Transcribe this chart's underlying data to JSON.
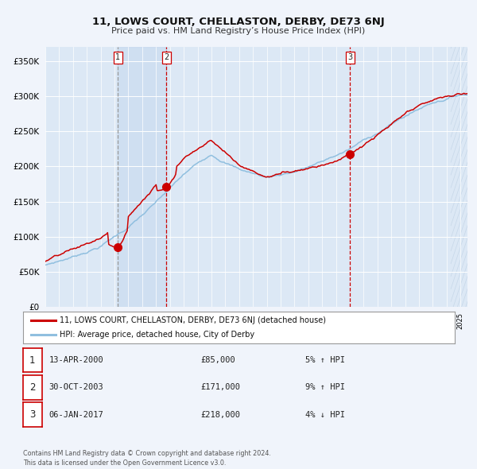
{
  "title": "11, LOWS COURT, CHELLASTON, DERBY, DE73 6NJ",
  "subtitle": "Price paid vs. HM Land Registry’s House Price Index (HPI)",
  "bg_color": "#f0f4fb",
  "plot_bg": "#dce8f5",
  "line_red_color": "#cc0000",
  "line_blue_color": "#90bfdf",
  "sale1_t": 2000.25,
  "sale1_price": 85000,
  "sale2_t": 2003.75,
  "sale2_price": 171000,
  "sale3_t": 2017.0,
  "sale3_price": 218000,
  "legend_red": "11, LOWS COURT, CHELLASTON, DERBY, DE73 6NJ (detached house)",
  "legend_blue": "HPI: Average price, detached house, City of Derby",
  "table_rows": [
    {
      "num": "1",
      "date": "13-APR-2000",
      "price": "£85,000",
      "change": "5% ↑ HPI"
    },
    {
      "num": "2",
      "date": "30-OCT-2003",
      "price": "£171,000",
      "change": "9% ↑ HPI"
    },
    {
      "num": "3",
      "date": "06-JAN-2017",
      "price": "£218,000",
      "change": "4% ↓ HPI"
    }
  ],
  "footer": "Contains HM Land Registry data © Crown copyright and database right 2024.\nThis data is licensed under the Open Government Licence v3.0.",
  "ylim": [
    0,
    370000
  ],
  "yticks": [
    0,
    50000,
    100000,
    150000,
    200000,
    250000,
    300000,
    350000
  ],
  "ytick_labels": [
    "£0",
    "£50K",
    "£100K",
    "£150K",
    "£200K",
    "£250K",
    "£300K",
    "£350K"
  ],
  "xmin": 1995,
  "xmax": 2025.5
}
